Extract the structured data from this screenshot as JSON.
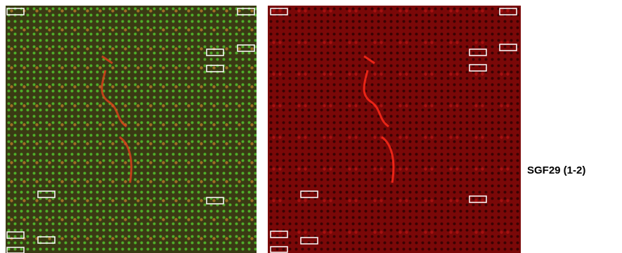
{
  "label": "SGF29 (1-2)"
}
